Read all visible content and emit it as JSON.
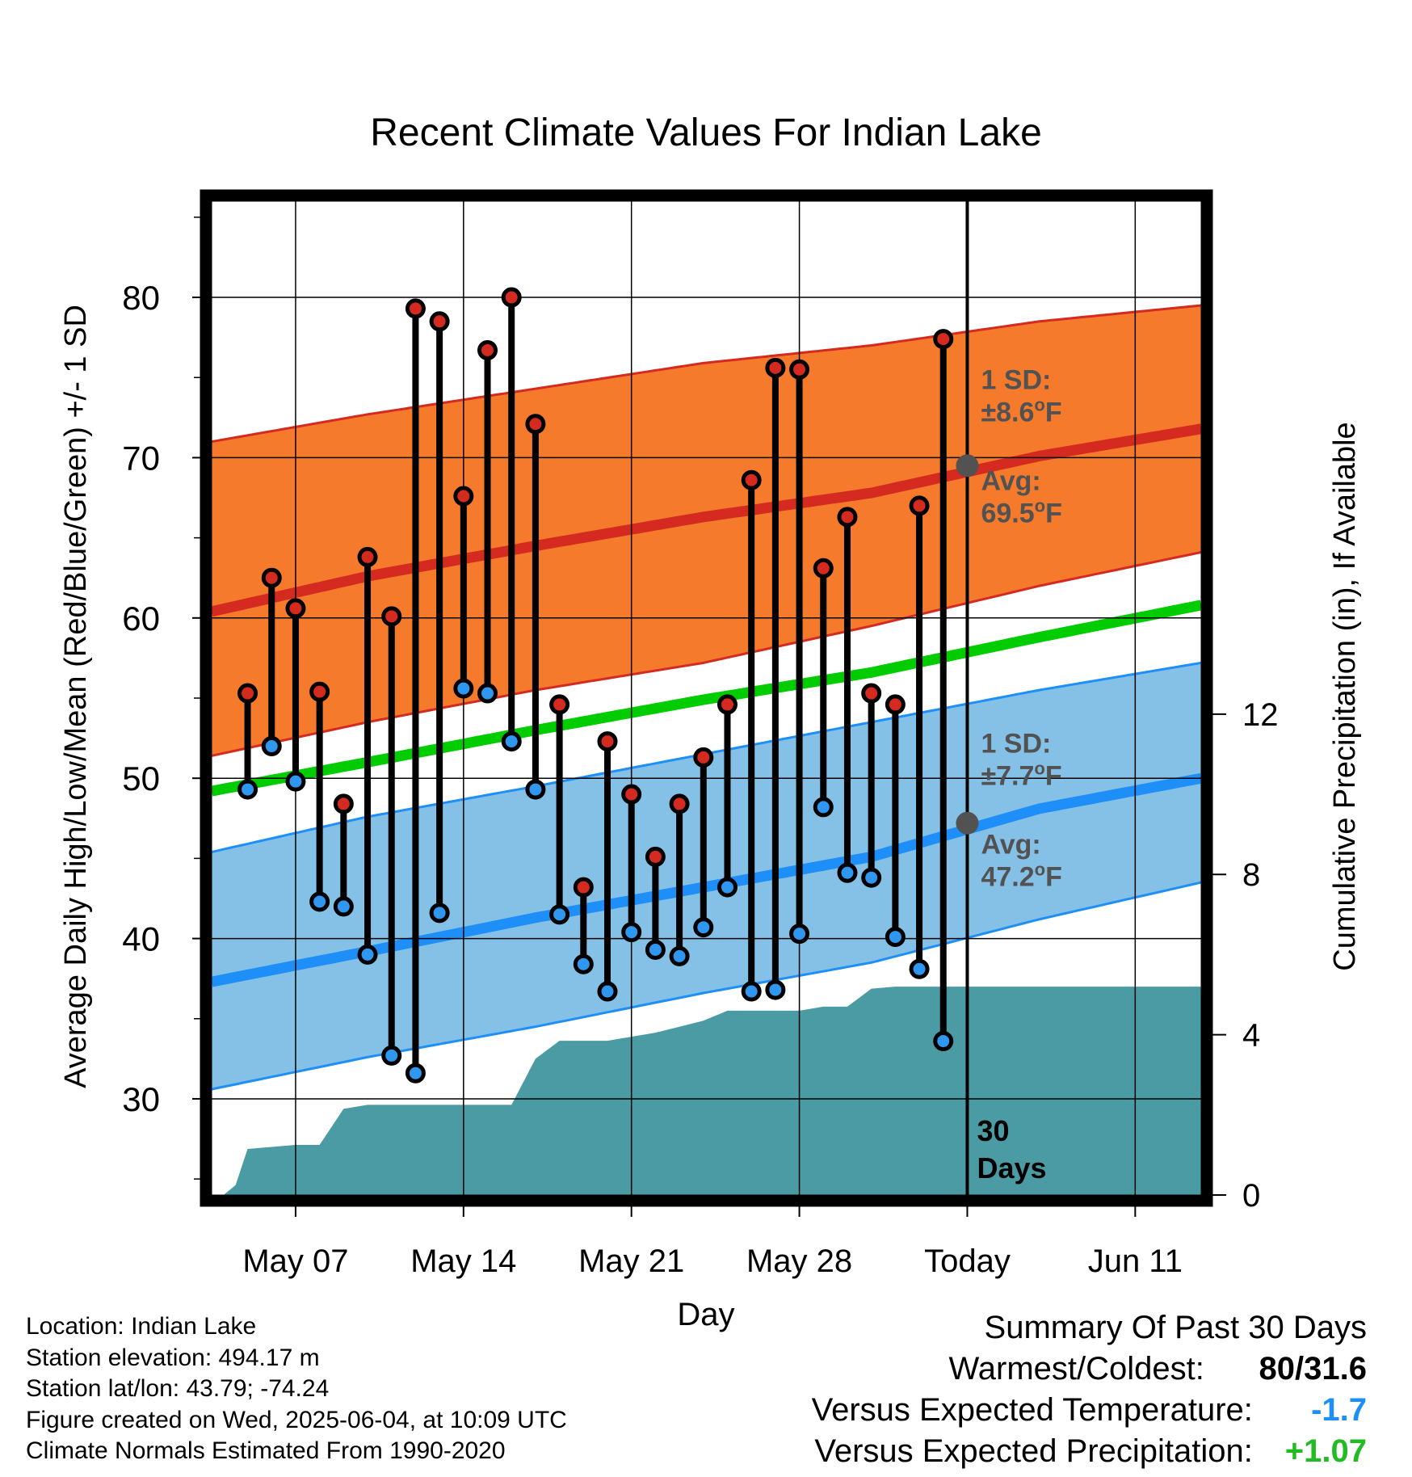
{
  "chart_data": {
    "type": "line",
    "title": "Recent Climate Values For Indian Lake",
    "xlabel": "Day",
    "ylabel": "Average Daily High/Low/Mean (Red/Blue/Green) +/- 1 SD",
    "y2label": "Cumulative Precipitation (in), If Available",
    "ylim": [
      24,
      86
    ],
    "y2lim": [
      0,
      24.8
    ],
    "y_ticks": [
      "30",
      "40",
      "50",
      "60",
      "70",
      "80"
    ],
    "y2_ticks": [
      "0",
      "4",
      "8",
      "12"
    ],
    "x_ticks": [
      "May 07",
      "May 14",
      "May 21",
      "May 28",
      "Today",
      "Jun 11"
    ],
    "x_tick_dates": [
      "2025-05-07",
      "2025-05-14",
      "2025-05-21",
      "2025-05-28",
      "2025-06-04",
      "2025-06-11"
    ],
    "xlim": [
      "2025-05-03T12:00",
      "2025-06-13T18:00"
    ],
    "grid": true,
    "today": "2025-06-04",
    "window_label": [
      "30",
      "Days"
    ],
    "normals": {
      "dates": [
        "2025-05-03T12:00",
        "2025-05-10",
        "2025-05-17",
        "2025-05-24",
        "2025-05-31",
        "2025-06-07",
        "2025-06-13T18:00"
      ],
      "high_mean": [
        60.4,
        62.6,
        64.5,
        66.3,
        67.8,
        70.1,
        71.8
      ],
      "high_upper": [
        71.0,
        72.7,
        74.3,
        75.9,
        77.0,
        78.5,
        79.5
      ],
      "high_lower": [
        51.4,
        53.5,
        55.5,
        57.2,
        59.5,
        62.0,
        64.1
      ],
      "mean_line": [
        49.2,
        51.0,
        53.0,
        54.9,
        56.6,
        58.8,
        60.8
      ],
      "low_mean": [
        37.3,
        39.2,
        41.3,
        43.2,
        45.1,
        48.1,
        50.0
      ],
      "low_upper": [
        45.4,
        47.6,
        49.5,
        51.5,
        53.5,
        55.5,
        57.2
      ],
      "low_lower": [
        30.6,
        32.6,
        34.5,
        36.6,
        38.5,
        41.2,
        43.5
      ]
    },
    "annotations": {
      "high": {
        "sd_label": "1 SD:",
        "sd_value": "±8.6",
        "avg_label": "Avg:",
        "avg_value": "69.5",
        "unit": "F",
        "value": 69.5
      },
      "low": {
        "sd_label": "1 SD:",
        "sd_value": "±7.7",
        "avg_label": "Avg:",
        "avg_value": "47.2",
        "unit": "F",
        "value": 47.2
      }
    },
    "observations": {
      "dates": [
        "2025-05-05",
        "2025-05-06",
        "2025-05-07",
        "2025-05-08",
        "2025-05-09",
        "2025-05-10",
        "2025-05-11",
        "2025-05-12",
        "2025-05-13",
        "2025-05-14",
        "2025-05-15",
        "2025-05-16",
        "2025-05-17",
        "2025-05-18",
        "2025-05-19",
        "2025-05-20",
        "2025-05-21",
        "2025-05-22",
        "2025-05-23",
        "2025-05-24",
        "2025-05-25",
        "2025-05-26",
        "2025-05-27",
        "2025-05-28",
        "2025-05-29",
        "2025-05-30",
        "2025-05-31",
        "2025-06-01",
        "2025-06-02",
        "2025-06-03"
      ],
      "high": [
        55.3,
        62.5,
        60.6,
        55.4,
        48.4,
        63.8,
        60.1,
        79.3,
        78.5,
        67.6,
        76.7,
        80.0,
        72.1,
        54.6,
        43.2,
        52.3,
        49.0,
        45.1,
        48.4,
        51.3,
        54.6,
        68.6,
        75.6,
        75.5,
        63.1,
        66.3,
        55.3,
        54.6,
        67.0,
        77.4
      ],
      "low": [
        49.3,
        52.0,
        49.8,
        42.3,
        42.0,
        39.0,
        32.7,
        31.6,
        41.6,
        55.6,
        55.3,
        52.3,
        49.3,
        41.5,
        38.4,
        36.7,
        40.4,
        39.3,
        38.9,
        40.7,
        43.2,
        36.7,
        36.8,
        40.3,
        48.2,
        44.1,
        43.8,
        40.1,
        38.1,
        33.6
      ]
    },
    "precipitation": {
      "dates": [
        "2025-05-04",
        "2025-05-04T12:00",
        "2025-05-05",
        "2025-05-06",
        "2025-05-07",
        "2025-05-08",
        "2025-05-09",
        "2025-05-10",
        "2025-05-11",
        "2025-05-12",
        "2025-05-13",
        "2025-05-14",
        "2025-05-15",
        "2025-05-16",
        "2025-05-17",
        "2025-05-18",
        "2025-05-19",
        "2025-05-20",
        "2025-05-21",
        "2025-05-22",
        "2025-05-23",
        "2025-05-24",
        "2025-05-25",
        "2025-05-26",
        "2025-05-27",
        "2025-05-28",
        "2025-05-29",
        "2025-05-30",
        "2025-05-31",
        "2025-06-01",
        "2025-06-02",
        "2025-06-03",
        "2025-06-04",
        "2025-06-13T18:00"
      ],
      "values": [
        0.0,
        0.25,
        1.15,
        1.2,
        1.25,
        1.25,
        2.15,
        2.25,
        2.25,
        2.25,
        2.25,
        2.25,
        2.25,
        2.25,
        3.4,
        3.85,
        3.85,
        3.85,
        3.95,
        4.05,
        4.2,
        4.35,
        4.6,
        4.6,
        4.6,
        4.6,
        4.7,
        4.7,
        5.15,
        5.2,
        5.2,
        5.2,
        5.2,
        5.2
      ]
    },
    "colors": {
      "high_band": "#F57A2C",
      "high_band_edge": "#D42A1F",
      "high_mean": "#D42A1F",
      "low_band": "#85C1E6",
      "low_band_edge": "#1E8FF8",
      "low_mean": "#1E8FF8",
      "mean_line": "#00CC00",
      "precip": "#4A9BA3",
      "high_dot": "#D42A1F",
      "low_dot": "#2F97F0",
      "annotation": "#525252"
    }
  },
  "footer": {
    "location": "Location: Indian Lake",
    "elevation": "Station elevation: 494.17 m",
    "latlon": "Station lat/lon: 43.79; -74.24",
    "created": "Figure created on Wed, 2025-06-04, at 10:09 UTC",
    "normals": "Climate Normals Estimated From 1990-2020"
  },
  "summary": {
    "heading": "Summary Of Past 30 Days",
    "warm_cold_label": "Warmest/Coldest:",
    "warm_cold_value": "80/31.6",
    "temp_label": "Versus Expected Temperature:",
    "temp_value": "-1.7",
    "temp_color": "#1E8FF8",
    "precip_label": "Versus Expected Precipitation:",
    "precip_value": "+1.07",
    "precip_color": "#22BB22"
  }
}
